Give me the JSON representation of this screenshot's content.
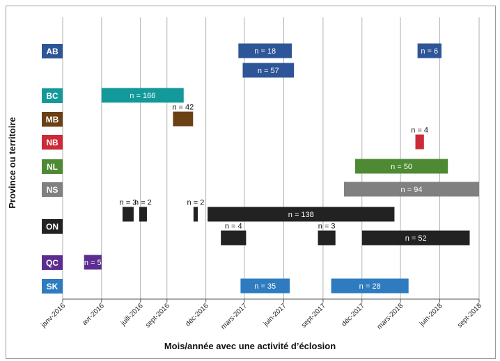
{
  "chart_data": {
    "type": "bar",
    "subtype": "gantt",
    "xlabel": "Mois/année avec une activité d’éclosion",
    "ylabel": "Province ou territoire",
    "x_ticks": [
      "janv-2016",
      "avr-2016",
      "juill-2016",
      "sept-2016",
      "déc-2016",
      "mars-2017",
      "juin-2017",
      "sept-2017",
      "déc-2017",
      "mars-2018",
      "juin-2018",
      "sept-2018"
    ],
    "x_range": [
      "2016-01",
      "2018-09"
    ],
    "grid": "vertical",
    "categories": [
      {
        "code": "AB",
        "color": "#2E5597"
      },
      {
        "code": "BC",
        "color": "#13999A"
      },
      {
        "code": "MB",
        "color": "#6B4014"
      },
      {
        "code": "NB",
        "color": "#CC2A36"
      },
      {
        "code": "NL",
        "color": "#4E8A34"
      },
      {
        "code": "NS",
        "color": "#808080"
      },
      {
        "code": "ON",
        "color": "#222222"
      },
      {
        "code": "QC",
        "color": "#5C2D91"
      },
      {
        "code": "SK",
        "color": "#2E7CBF"
      }
    ],
    "bars": [
      {
        "province": "AB",
        "label": "n = 18",
        "start": "2017-02-15",
        "end": "2017-06-20",
        "label_pos": "inside"
      },
      {
        "province": "AB",
        "label": "n = 6",
        "start": "2018-04-10",
        "end": "2018-06-05",
        "label_pos": "inside"
      },
      {
        "province": "AB",
        "label": "n = 57",
        "start": "2017-02-25",
        "end": "2017-06-25",
        "label_pos": "inside"
      },
      {
        "province": "BC",
        "label": "n = 166",
        "start": "2016-04-01",
        "end": "2016-10-10",
        "label_pos": "inside"
      },
      {
        "province": "MB",
        "label": "n = 42",
        "start": "2016-09-15",
        "end": "2016-11-01",
        "label_pos": "above"
      },
      {
        "province": "NB",
        "label": "n = 4",
        "start": "2018-04-05",
        "end": "2018-04-25",
        "label_pos": "above"
      },
      {
        "province": "NL",
        "label": "n = 50",
        "start": "2017-11-15",
        "end": "2018-06-20",
        "label_pos": "inside"
      },
      {
        "province": "NS",
        "label": "n = 94",
        "start": "2017-10-20",
        "end": "2018-09-01",
        "label_pos": "inside"
      },
      {
        "province": "ON",
        "label": "n = 3",
        "start": "2016-05-20",
        "end": "2016-06-15",
        "label_pos": "above"
      },
      {
        "province": "ON",
        "label": "n = 2",
        "start": "2016-06-28",
        "end": "2016-07-16",
        "label_pos": "above"
      },
      {
        "province": "ON",
        "label": "n = 2",
        "start": "2016-11-02",
        "end": "2016-11-12",
        "label_pos": "above"
      },
      {
        "province": "ON",
        "label": "n = 138",
        "start": "2016-12-05",
        "end": "2018-02-15",
        "label_pos": "inside"
      },
      {
        "province": "ON",
        "label": "n = 4",
        "start": "2017-01-05",
        "end": "2017-03-05",
        "label_pos": "above"
      },
      {
        "province": "ON",
        "label": "n = 3",
        "start": "2017-08-20",
        "end": "2017-09-30",
        "label_pos": "above"
      },
      {
        "province": "ON",
        "label": "n = 52",
        "start": "2017-12-01",
        "end": "2018-08-10",
        "label_pos": "inside"
      },
      {
        "province": "QC",
        "label": "n = 5",
        "start": "2016-02-20",
        "end": "2016-04-01",
        "label_pos": "inside"
      },
      {
        "province": "SK",
        "label": "n = 35",
        "start": "2017-02-20",
        "end": "2017-06-15",
        "label_pos": "inside"
      },
      {
        "province": "SK",
        "label": "n = 28",
        "start": "2017-09-20",
        "end": "2018-03-20",
        "label_pos": "inside"
      }
    ]
  }
}
